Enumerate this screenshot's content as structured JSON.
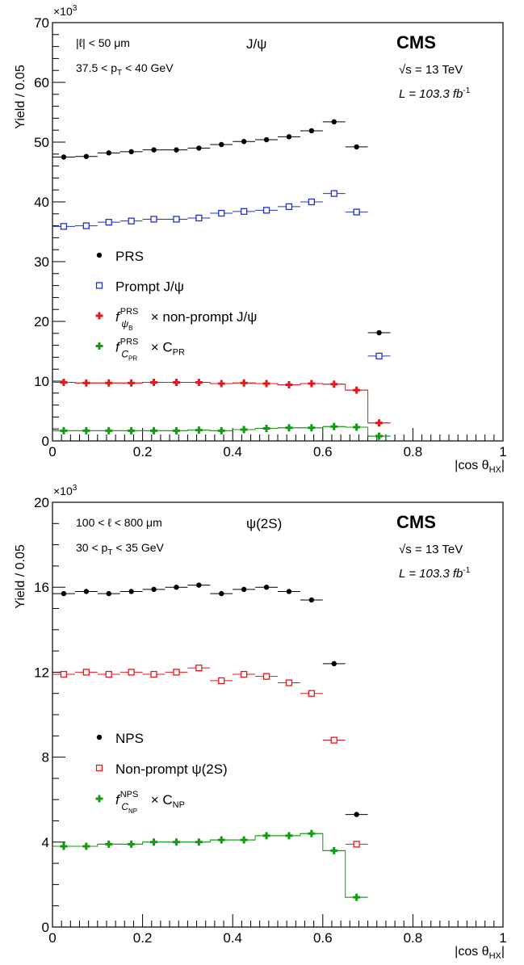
{
  "chart_data": [
    {
      "type": "scatter",
      "xlabel": "|cos θ",
      "xlabel_sub": "HX",
      "xlabel_end": "|",
      "ylabel": "Yield / 0.05",
      "y_multiplier": "×10",
      "y_multiplier_exp": "3",
      "xlim": [
        0,
        1
      ],
      "ylim": [
        0,
        70
      ],
      "x_ticks": [
        "0",
        "0.2",
        "0.4",
        "0.6",
        "0.8",
        "1"
      ],
      "y_ticks": [
        "0",
        "10",
        "20",
        "30",
        "40",
        "50",
        "60",
        "70"
      ],
      "y_tick_values": [
        0,
        10,
        20,
        30,
        40,
        50,
        60,
        70
      ],
      "bin_width": 0.05,
      "experiment": "CMS",
      "sqrt_s": "√s = 13 TeV",
      "lumi": "L = 103.3 fb",
      "lumi_exp": "-1",
      "state_label": "J/ψ",
      "cut_1": "|ℓ| < 50 μm",
      "cut_2_pre": "37.5 < p",
      "cut_2_sub": "T",
      "cut_2_post": " < 40 GeV",
      "legend": [
        {
          "marker": "dot",
          "color": "#000000",
          "text": "PRS"
        },
        {
          "marker": "square",
          "color": "#1f2fd6",
          "text": "Prompt J/ψ"
        },
        {
          "marker": "plus",
          "color": "#e8151b",
          "text_pre": "f",
          "text_sup": "PRS",
          "text_sub": "ψ",
          "text_subsub": "B",
          "text_post": " × non-prompt J/ψ"
        },
        {
          "marker": "plus",
          "color": "#0f9d0f",
          "text_pre": "f",
          "text_sup": "PRS",
          "text_sub": "C",
          "text_subsub": "PR",
          "text_post": " × C",
          "text_post_sub": "PR"
        }
      ],
      "series": [
        {
          "name": "PRS",
          "marker": "dot",
          "color": "#000000",
          "x": [
            0.025,
            0.075,
            0.125,
            0.175,
            0.225,
            0.275,
            0.325,
            0.375,
            0.425,
            0.475,
            0.525,
            0.575,
            0.625,
            0.675,
            0.725
          ],
          "y": [
            47.5,
            47.6,
            48.2,
            48.4,
            48.7,
            48.7,
            49.0,
            49.6,
            50.1,
            50.4,
            50.9,
            51.9,
            53.4,
            49.2,
            18.1
          ]
        },
        {
          "name": "Prompt J/ψ",
          "marker": "square",
          "color": "#1f2fd6",
          "x": [
            0.025,
            0.075,
            0.125,
            0.175,
            0.225,
            0.275,
            0.325,
            0.375,
            0.425,
            0.475,
            0.525,
            0.575,
            0.625,
            0.675,
            0.725
          ],
          "y": [
            35.9,
            36.0,
            36.6,
            36.8,
            37.1,
            37.1,
            37.3,
            38.1,
            38.4,
            38.6,
            39.2,
            40.0,
            41.4,
            38.3,
            14.2
          ]
        },
        {
          "name": "non-prompt J/ψ",
          "marker": "plus",
          "color": "#e8151b",
          "line": true,
          "x": [
            0.025,
            0.075,
            0.125,
            0.175,
            0.225,
            0.275,
            0.325,
            0.375,
            0.425,
            0.475,
            0.525,
            0.575,
            0.625,
            0.675,
            0.725
          ],
          "y": [
            9.8,
            9.7,
            9.7,
            9.7,
            9.8,
            9.8,
            9.8,
            9.6,
            9.7,
            9.6,
            9.4,
            9.6,
            9.5,
            8.5,
            3.0
          ]
        },
        {
          "name": "C_PR",
          "marker": "plus",
          "color": "#0f9d0f",
          "line": true,
          "x": [
            0.025,
            0.075,
            0.125,
            0.175,
            0.225,
            0.275,
            0.325,
            0.375,
            0.425,
            0.475,
            0.525,
            0.575,
            0.625,
            0.675,
            0.725
          ],
          "y": [
            1.7,
            1.7,
            1.7,
            1.7,
            1.7,
            1.7,
            1.8,
            1.7,
            1.9,
            2.1,
            2.2,
            2.2,
            2.4,
            2.3,
            0.8
          ]
        }
      ]
    },
    {
      "type": "scatter",
      "xlabel": "|cos θ",
      "xlabel_sub": "HX",
      "xlabel_end": "|",
      "ylabel": "Yield / 0.05",
      "y_multiplier": "×10",
      "y_multiplier_exp": "3",
      "xlim": [
        0,
        1
      ],
      "ylim": [
        0,
        20
      ],
      "x_ticks": [
        "0",
        "0.2",
        "0.4",
        "0.6",
        "0.8",
        "1"
      ],
      "y_ticks": [
        "0",
        "4",
        "8",
        "12",
        "16",
        "20"
      ],
      "y_tick_values": [
        0,
        4,
        8,
        12,
        16,
        20
      ],
      "bin_width": 0.05,
      "experiment": "CMS",
      "sqrt_s": "√s = 13 TeV",
      "lumi": "L = 103.3 fb",
      "lumi_exp": "-1",
      "state_label": "ψ(2S)",
      "cut_1": "100 < ℓ < 800 μm",
      "cut_2_pre": "30 < p",
      "cut_2_sub": "T",
      "cut_2_post": " < 35 GeV",
      "legend": [
        {
          "marker": "dot",
          "color": "#000000",
          "text": "NPS"
        },
        {
          "marker": "square",
          "color": "#e8151b",
          "text": "Non-prompt ψ(2S)"
        },
        {
          "marker": "plus",
          "color": "#0f9d0f",
          "text_pre": "f",
          "text_sup": "NPS",
          "text_sub": "C",
          "text_subsub": "NP",
          "text_post": " × C",
          "text_post_sub": "NP"
        }
      ],
      "series": [
        {
          "name": "NPS",
          "marker": "dot",
          "color": "#000000",
          "x": [
            0.025,
            0.075,
            0.125,
            0.175,
            0.225,
            0.275,
            0.325,
            0.375,
            0.425,
            0.475,
            0.525,
            0.575,
            0.625,
            0.675
          ],
          "y": [
            15.7,
            15.8,
            15.7,
            15.8,
            15.9,
            16.0,
            16.1,
            15.7,
            15.9,
            16.0,
            15.8,
            15.4,
            12.4,
            5.3
          ]
        },
        {
          "name": "Non-prompt ψ(2S)",
          "marker": "square",
          "color": "#e8151b",
          "x": [
            0.025,
            0.075,
            0.125,
            0.175,
            0.225,
            0.275,
            0.325,
            0.375,
            0.425,
            0.475,
            0.525,
            0.575,
            0.625,
            0.675
          ],
          "y": [
            11.9,
            12.0,
            11.9,
            12.0,
            11.9,
            12.0,
            12.2,
            11.6,
            11.9,
            11.8,
            11.5,
            11.0,
            8.8,
            3.9
          ]
        },
        {
          "name": "C_NP",
          "marker": "plus",
          "color": "#0f9d0f",
          "line": true,
          "x": [
            0.025,
            0.075,
            0.125,
            0.175,
            0.225,
            0.275,
            0.325,
            0.375,
            0.425,
            0.475,
            0.525,
            0.575,
            0.625,
            0.675
          ],
          "y": [
            3.8,
            3.8,
            3.9,
            3.9,
            4.0,
            4.0,
            4.0,
            4.1,
            4.1,
            4.3,
            4.3,
            4.4,
            3.6,
            1.4
          ]
        }
      ]
    }
  ]
}
